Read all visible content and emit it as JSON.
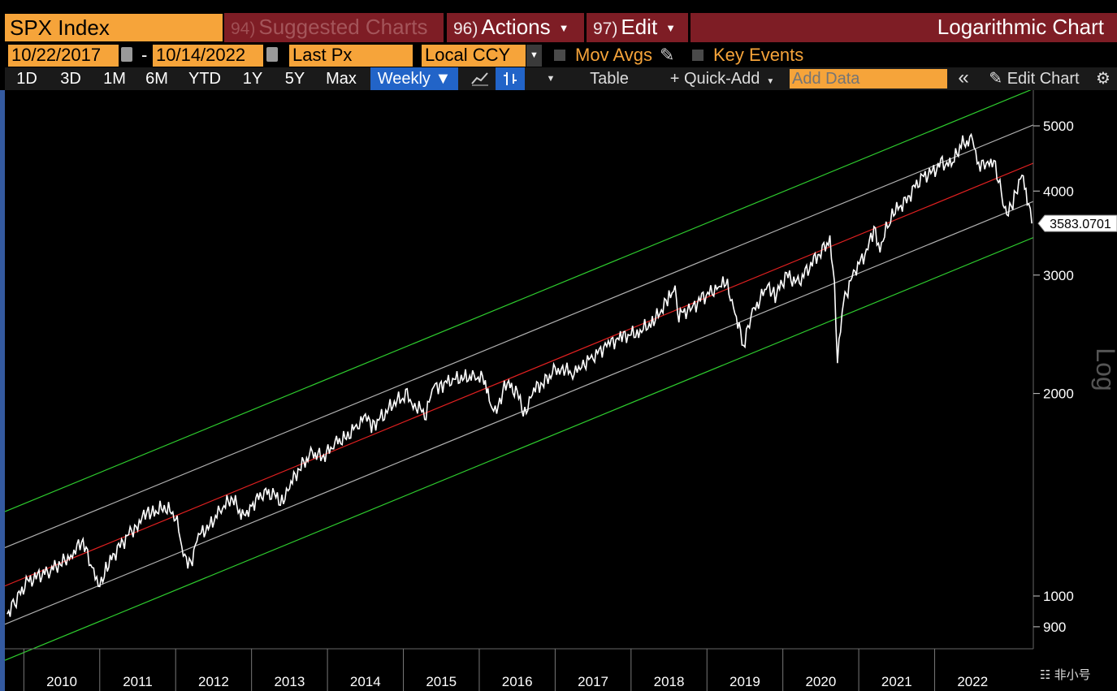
{
  "toolbar": {
    "ticker": "SPX Index",
    "suggested_num": "94)",
    "suggested_label": "Suggested Charts",
    "actions_num": "96)",
    "actions_label": "Actions",
    "edit_num": "97)",
    "edit_label": "Edit",
    "chart_title": "Logarithmic Chart"
  },
  "params": {
    "start_date": "10/22/2017",
    "dash": "-",
    "end_date": "10/14/2022",
    "price_field": "Last Px",
    "currency": "Local CCY",
    "mov_avgs": "Mov Avgs",
    "key_events": "Key Events"
  },
  "periods": [
    "1D",
    "3D",
    "1M",
    "6M",
    "YTD",
    "1Y",
    "5Y",
    "Max"
  ],
  "frequency": "Weekly ▼",
  "tools": {
    "table": "Table",
    "quick_add": "+ Quick-Add",
    "add_data_placeholder": "Add Data",
    "collapse": "«",
    "edit_chart": "Edit Chart"
  },
  "watermark": "非小号",
  "colors": {
    "accent_orange": "#f6a43a",
    "header_red": "#7e1d25",
    "active_blue": "#2264c8",
    "regression_red": "#e02020",
    "channel_green": "#2ecc2e",
    "band_gray": "#b0b0b0",
    "price_white": "#ffffff"
  },
  "chart_data": {
    "type": "line",
    "scale": "log",
    "ylabel": "Log",
    "ylim": [
      850,
      5600
    ],
    "y_ticks": [
      900,
      1000,
      2000,
      3000,
      4000,
      5000
    ],
    "x_ticks": [
      "2010",
      "2011",
      "2012",
      "2013",
      "2014",
      "2015",
      "2016",
      "2017",
      "2018",
      "2019",
      "2020",
      "2021",
      "2022"
    ],
    "xlim": [
      2009.25,
      2022.8
    ],
    "last_value_label": "3583.0701",
    "series": [
      {
        "values": [
          [
            2009.28,
            940
          ],
          [
            2009.4,
            990
          ],
          [
            2009.55,
            1050
          ],
          [
            2009.7,
            1070
          ],
          [
            2009.85,
            1095
          ],
          [
            2010.0,
            1120
          ],
          [
            2010.12,
            1150
          ],
          [
            2010.28,
            1210
          ],
          [
            2010.4,
            1090
          ],
          [
            2010.5,
            1040
          ],
          [
            2010.6,
            1110
          ],
          [
            2010.75,
            1180
          ],
          [
            2010.9,
            1240
          ],
          [
            2011.0,
            1280
          ],
          [
            2011.1,
            1320
          ],
          [
            2011.2,
            1330
          ],
          [
            2011.35,
            1355
          ],
          [
            2011.5,
            1320
          ],
          [
            2011.6,
            1150
          ],
          [
            2011.7,
            1120
          ],
          [
            2011.8,
            1230
          ],
          [
            2011.95,
            1270
          ],
          [
            2012.1,
            1350
          ],
          [
            2012.25,
            1400
          ],
          [
            2012.38,
            1310
          ],
          [
            2012.5,
            1360
          ],
          [
            2012.65,
            1430
          ],
          [
            2012.8,
            1410
          ],
          [
            2012.9,
            1380
          ],
          [
            2013.0,
            1460
          ],
          [
            2013.15,
            1560
          ],
          [
            2013.3,
            1630
          ],
          [
            2013.45,
            1610
          ],
          [
            2013.6,
            1690
          ],
          [
            2013.75,
            1720
          ],
          [
            2013.9,
            1800
          ],
          [
            2014.0,
            1840
          ],
          [
            2014.1,
            1790
          ],
          [
            2014.25,
            1870
          ],
          [
            2014.4,
            1950
          ],
          [
            2014.55,
            1980
          ],
          [
            2014.65,
            1920
          ],
          [
            2014.8,
            1870
          ],
          [
            2014.9,
            2050
          ],
          [
            2015.0,
            2060
          ],
          [
            2015.15,
            2100
          ],
          [
            2015.3,
            2110
          ],
          [
            2015.45,
            2120
          ],
          [
            2015.58,
            2100
          ],
          [
            2015.65,
            1880
          ],
          [
            2015.75,
            1920
          ],
          [
            2015.85,
            2080
          ],
          [
            2016.0,
            2000
          ],
          [
            2016.1,
            1860
          ],
          [
            2016.2,
            2020
          ],
          [
            2016.35,
            2080
          ],
          [
            2016.5,
            2160
          ],
          [
            2016.6,
            2180
          ],
          [
            2016.75,
            2140
          ],
          [
            2016.85,
            2200
          ],
          [
            2017.0,
            2270
          ],
          [
            2017.2,
            2370
          ],
          [
            2017.4,
            2430
          ],
          [
            2017.6,
            2470
          ],
          [
            2017.8,
            2560
          ],
          [
            2018.0,
            2770
          ],
          [
            2018.08,
            2870
          ],
          [
            2018.13,
            2620
          ],
          [
            2018.3,
            2680
          ],
          [
            2018.45,
            2780
          ],
          [
            2018.65,
            2880
          ],
          [
            2018.75,
            2920
          ],
          [
            2018.85,
            2700
          ],
          [
            2018.98,
            2360
          ],
          [
            2019.1,
            2630
          ],
          [
            2019.3,
            2900
          ],
          [
            2019.4,
            2800
          ],
          [
            2019.55,
            3000
          ],
          [
            2019.7,
            2910
          ],
          [
            2019.85,
            3100
          ],
          [
            2020.0,
            3250
          ],
          [
            2020.12,
            3380
          ],
          [
            2020.18,
            2900
          ],
          [
            2020.22,
            2240
          ],
          [
            2020.3,
            2750
          ],
          [
            2020.45,
            3050
          ],
          [
            2020.6,
            3250
          ],
          [
            2020.7,
            3500
          ],
          [
            2020.78,
            3300
          ],
          [
            2020.9,
            3600
          ],
          [
            2021.0,
            3750
          ],
          [
            2021.15,
            3900
          ],
          [
            2021.3,
            4180
          ],
          [
            2021.45,
            4250
          ],
          [
            2021.6,
            4400
          ],
          [
            2021.72,
            4370
          ],
          [
            2021.85,
            4690
          ],
          [
            2022.0,
            4770
          ],
          [
            2022.08,
            4400
          ],
          [
            2022.18,
            4350
          ],
          [
            2022.28,
            4450
          ],
          [
            2022.4,
            3900
          ],
          [
            2022.45,
            3660
          ],
          [
            2022.55,
            3900
          ],
          [
            2022.65,
            4290
          ],
          [
            2022.72,
            3900
          ],
          [
            2022.78,
            3580
          ]
        ]
      }
    ]
  }
}
